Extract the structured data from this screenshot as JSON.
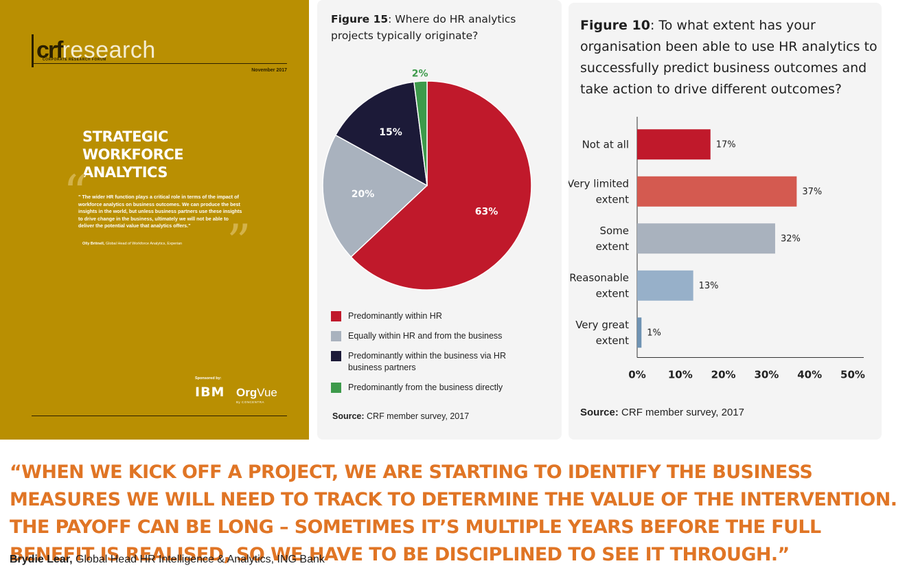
{
  "cover": {
    "logo_crf": "crf",
    "logo_research": "research",
    "logo_subtitle": "CORPORATE RESEARCH FORUM",
    "date": "November 2017",
    "title_line1": "STRATEGIC WORKFORCE",
    "title_line2": "ANALYTICS",
    "quote": "\" The wider HR function plays a critical role in terms of the impact of workforce analytics on business outcomes. We can produce the best insights in the world, but unless business partners use these insights to drive change in the business, ultimately we will not be able to deliver the potential value that analytics offers.\"",
    "quote_author": "Olly Britnell,",
    "quote_role": "Global Head of Workforce Analytics, Experian",
    "sponsored_by": "Sponsored by:",
    "sponsor1": "IBM",
    "sponsor2_bold": "Org",
    "sponsor2_rest": "Vue",
    "sponsor2_sub": "By CONCENTRA",
    "colors": {
      "background": "#b98f02"
    }
  },
  "figure15": {
    "title_bold": "Figure 15",
    "title_rest": ": Where do HR analytics projects typically originate?",
    "source_bold": "Source:",
    "source_rest": " CRF member survey, 2017"
  },
  "figure10": {
    "title_bold": "Figure 10",
    "title_rest": ": To what extent has your organisation been able to use HR analytics to successfully predict business outcomes and take action to drive different outcomes?",
    "source_bold": "Source:",
    "source_rest": " CRF member survey, 2017"
  },
  "chart_data": [
    {
      "type": "pie",
      "title": "Figure 15: Where do HR analytics projects typically originate?",
      "slices": [
        {
          "label": "Predominantly within HR",
          "value": 63,
          "display": "63%",
          "color": "#c0192b"
        },
        {
          "label": "Equally within HR and from the business",
          "value": 20,
          "display": "20%",
          "color": "#a9b2be"
        },
        {
          "label": "Predominantly within the business via HR business partners",
          "value": 15,
          "display": "15%",
          "color": "#1c1a38"
        },
        {
          "label": "Predominantly from the business directly",
          "value": 2,
          "display": "2%",
          "color": "#3d9a4b"
        }
      ],
      "legend_position": "bottom"
    },
    {
      "type": "bar",
      "orientation": "horizontal",
      "title": "Figure 10: To what extent has your organisation been able to use HR analytics to successfully predict business outcomes and take action to drive different outcomes?",
      "categories": [
        "Not at all",
        "Very limited extent",
        "Some extent",
        "Reasonable extent",
        "Very great extent"
      ],
      "category_lines": [
        [
          "Not at all"
        ],
        [
          "Very limited",
          "extent"
        ],
        [
          "Some",
          "extent"
        ],
        [
          "Reasonable",
          "extent"
        ],
        [
          "Very great",
          "extent"
        ]
      ],
      "values": [
        17,
        37,
        32,
        13,
        1
      ],
      "value_labels": [
        "17%",
        "37%",
        "32%",
        "13%",
        "1%"
      ],
      "colors": [
        "#c0192b",
        "#d45a50",
        "#a9b2be",
        "#97b0c9",
        "#6f93b3"
      ],
      "xlim": [
        0,
        50
      ],
      "xticks": [
        0,
        10,
        20,
        30,
        40,
        50
      ],
      "xtick_labels": [
        "0%",
        "10%",
        "20%",
        "30%",
        "40%",
        "50%"
      ],
      "xlabel": "",
      "ylabel": "",
      "grid": false
    }
  ],
  "bottom_quote": {
    "text": "“WHEN WE KICK OFF A PROJECT, WE ARE STARTING TO IDENTIFY THE BUSINESS MEASURES WE WILL NEED TO TRACK TO DETERMINE THE VALUE OF THE INTERVENTION. THE PAYOFF CAN BE LONG – SOMETIMES IT’S MULTIPLE YEARS BEFORE THE FULL BENEFIT IS REALISED, SO WE HAVE TO BE DISCIPLINED TO SEE IT THROUGH.”",
    "author": "Brydie Lear,",
    "role": " Global Head HR Intelligence & Analytics, ING Bank",
    "color": "#e07525"
  }
}
